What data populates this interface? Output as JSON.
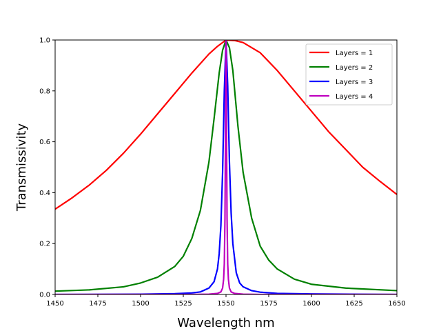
{
  "chart_data": {
    "type": "line",
    "title": "",
    "xlabel": "Wavelength nm",
    "ylabel": "Transmissivity",
    "xlim": [
      1450,
      1650
    ],
    "ylim": [
      0.0,
      1.0
    ],
    "x_ticks": [
      1450,
      1475,
      1500,
      1525,
      1550,
      1575,
      1600,
      1625,
      1650
    ],
    "x_tick_labels": [
      "1450",
      "1475",
      "1500",
      "1525",
      "1550",
      "1575",
      "1600",
      "1625",
      "1650"
    ],
    "y_ticks": [
      0.0,
      0.2,
      0.4,
      0.6,
      0.8,
      1.0
    ],
    "y_tick_labels": [
      "0.0",
      "0.2",
      "0.4",
      "0.6",
      "0.8",
      "1.0"
    ],
    "grid": false,
    "legend_position": "top-right",
    "series": [
      {
        "name": "Layers = 1",
        "color": "#ff0000",
        "x": [
          1450,
          1460,
          1470,
          1480,
          1490,
          1500,
          1510,
          1520,
          1530,
          1540,
          1545,
          1550,
          1555,
          1560,
          1570,
          1580,
          1590,
          1600,
          1610,
          1620,
          1630,
          1640,
          1650
        ],
        "y": [
          0.335,
          0.38,
          0.43,
          0.488,
          0.555,
          0.63,
          0.71,
          0.79,
          0.87,
          0.945,
          0.975,
          1.0,
          0.998,
          0.99,
          0.95,
          0.88,
          0.8,
          0.72,
          0.64,
          0.57,
          0.5,
          0.445,
          0.393
        ]
      },
      {
        "name": "Layers = 2",
        "color": "#008000",
        "x": [
          1450,
          1470,
          1490,
          1500,
          1510,
          1520,
          1525,
          1530,
          1535,
          1540,
          1543,
          1546,
          1548,
          1550,
          1552,
          1554,
          1557,
          1560,
          1565,
          1570,
          1575,
          1580,
          1590,
          1600,
          1620,
          1650
        ],
        "y": [
          0.013,
          0.018,
          0.03,
          0.045,
          0.068,
          0.11,
          0.15,
          0.22,
          0.33,
          0.52,
          0.69,
          0.87,
          0.96,
          1.0,
          0.97,
          0.88,
          0.66,
          0.48,
          0.3,
          0.19,
          0.135,
          0.1,
          0.06,
          0.04,
          0.025,
          0.015
        ]
      },
      {
        "name": "Layers = 3",
        "color": "#0000ff",
        "x": [
          1450,
          1500,
          1520,
          1530,
          1535,
          1540,
          1543,
          1545,
          1546,
          1547,
          1548,
          1549,
          1550,
          1551,
          1552,
          1553,
          1554,
          1556,
          1558,
          1560,
          1565,
          1570,
          1580,
          1600,
          1650
        ],
        "y": [
          0.0,
          0.001,
          0.003,
          0.006,
          0.01,
          0.025,
          0.05,
          0.1,
          0.16,
          0.27,
          0.48,
          0.8,
          1.0,
          0.82,
          0.52,
          0.32,
          0.2,
          0.085,
          0.045,
          0.03,
          0.015,
          0.009,
          0.004,
          0.002,
          0.0
        ]
      },
      {
        "name": "Layers = 4",
        "color": "#bf00bf",
        "x": [
          1450,
          1530,
          1540,
          1545,
          1547,
          1548,
          1548.6,
          1549,
          1549.4,
          1549.7,
          1550,
          1550.3,
          1550.6,
          1551,
          1551.4,
          1552,
          1553,
          1555,
          1560,
          1570,
          1650
        ],
        "y": [
          0.0,
          0.0,
          0.001,
          0.004,
          0.01,
          0.025,
          0.06,
          0.12,
          0.3,
          0.65,
          1.0,
          0.65,
          0.3,
          0.12,
          0.06,
          0.025,
          0.01,
          0.004,
          0.001,
          0.0,
          0.0
        ]
      }
    ]
  }
}
